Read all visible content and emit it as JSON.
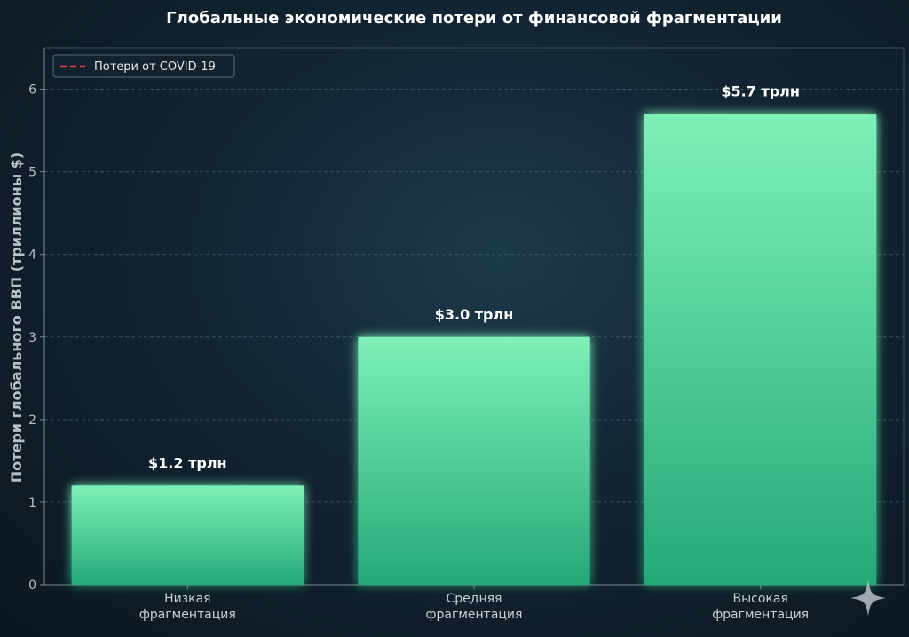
{
  "chart_data": {
    "type": "bar",
    "title": "Глобальные экономические потери от финансовой фрагментации",
    "ylabel": "Потери глобального ВВП (триллионы $)",
    "xlabel": "",
    "ylim": [
      0,
      6.5
    ],
    "yticks": [
      0,
      1,
      2,
      3,
      4,
      5,
      6
    ],
    "grid": true,
    "categories": [
      [
        "Низкая",
        "фрагментация"
      ],
      [
        "Средняя",
        "фрагментация"
      ],
      [
        "Высокая",
        "фрагментация"
      ]
    ],
    "values": [
      1.2,
      3.0,
      5.7
    ],
    "data_labels": [
      "$1.2 трлн",
      "$3.0 трлн",
      "$5.7 трлн"
    ],
    "reference_line": {
      "value": 5.0,
      "label": "Потери от COVID-19",
      "color": "#e0453f",
      "style": "dashed"
    },
    "legend_placement": "top-left",
    "colors": {
      "bar_top": "#7ef0b8",
      "bar_bottom": "#25a878",
      "grid": "#4a6275",
      "axis": "#7d8b96"
    }
  },
  "watermark": {
    "icon": "sparkle-icon"
  }
}
